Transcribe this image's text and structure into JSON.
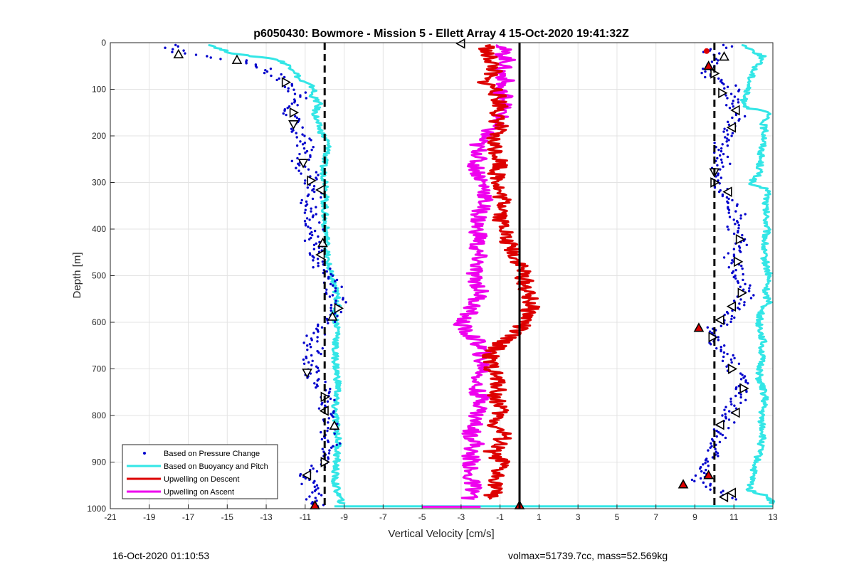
{
  "chart_data": {
    "type": "scatter",
    "title": "p6050430: Bowmore - Mission 5 - Ellett Array 4 15-Oct-2020 19:41:32Z",
    "xlabel": "Vertical Velocity [cm/s]",
    "ylabel": "Depth [m]",
    "xlim": [
      -21,
      13
    ],
    "ylim": [
      0,
      1000
    ],
    "y_reversed": true,
    "grid": true,
    "x_ticks": [
      -21,
      -19,
      -17,
      -15,
      -13,
      -11,
      -9,
      -7,
      -5,
      -3,
      -1,
      1,
      3,
      5,
      7,
      9,
      11,
      13
    ],
    "y_ticks": [
      0,
      100,
      200,
      300,
      400,
      500,
      600,
      700,
      800,
      900,
      1000
    ],
    "legend_position": "bottom-left",
    "reference_lines": [
      {
        "x": -10.0,
        "style": "dashed",
        "color": "#000000"
      },
      {
        "x": 0.0,
        "style": "solid",
        "color": "#000000"
      },
      {
        "x": 10.0,
        "style": "dashed",
        "color": "#000000"
      }
    ],
    "series": [
      {
        "name": "Based on Pressure Change",
        "color": "#0000cc",
        "marker": "dot",
        "groups": [
          {
            "depth": [
              5,
              20,
              30,
              40,
              55,
              70,
              85,
              100,
              120,
              140,
              160,
              180,
              200,
              220,
              240,
              260,
              280,
              300,
              320,
              340,
              360,
              380,
              400,
              420,
              440,
              460,
              480,
              500,
              520,
              540,
              560,
              580,
              600,
              620,
              640,
              660,
              680,
              700,
              720,
              740,
              760,
              780,
              800,
              820,
              840,
              860,
              880,
              900,
              920,
              940,
              960,
              980,
              995
            ],
            "vv": [
              -18,
              -17.5,
              -16,
              -14,
              -13,
              -12.5,
              -12,
              -11.5,
              -11.3,
              -11.8,
              -11.7,
              -11.6,
              -11.2,
              -11,
              -10.9,
              -11.5,
              -10.8,
              -10.6,
              -10.3,
              -10.8,
              -10.9,
              -10.6,
              -10.5,
              -10.7,
              -10.4,
              -10.8,
              -10.2,
              -9.8,
              -9.5,
              -9.6,
              -9.3,
              -9.5,
              -9.8,
              -10.3,
              -10.7,
              -10.5,
              -10.8,
              -10.7,
              -10.5,
              -10.1,
              -9.8,
              -10.0,
              -9.6,
              -9.7,
              -9.8,
              -9.6,
              -9.7,
              -9.9,
              -10.8,
              -10.9,
              -10.7,
              -10.5,
              -10.4
            ]
          },
          {
            "depth": [
              5,
              20,
              30,
              40,
              55,
              70,
              85,
              100,
              120,
              140,
              160,
              180,
              200,
              220,
              240,
              260,
              280,
              300,
              320,
              340,
              360,
              380,
              400,
              420,
              440,
              460,
              480,
              500,
              520,
              540,
              560,
              580,
              600,
              620,
              640,
              660,
              680,
              700,
              720,
              740,
              760,
              780,
              800,
              820,
              840,
              860,
              880,
              900,
              920,
              940,
              960,
              980
            ],
            "vv": [
              10.8,
              9.8,
              10.5,
              10.2,
              9.6,
              9.8,
              10.4,
              11.0,
              10.8,
              11.1,
              11.3,
              10.9,
              10.6,
              10.3,
              10.2,
              10.5,
              10.1,
              10.0,
              10.4,
              10.8,
              11.1,
              11.3,
              11.0,
              11.2,
              11.4,
              10.9,
              11.1,
              11.2,
              11.4,
              11.6,
              11.3,
              10.9,
              10.5,
              9.6,
              10.0,
              10.5,
              10.8,
              11.0,
              11.4,
              11.5,
              11.3,
              11.0,
              10.8,
              10.5,
              10.3,
              10.0,
              9.9,
              9.8,
              9.5,
              9.0,
              10.3,
              10.8
            ]
          }
        ]
      },
      {
        "name": "Based on Buoyancy and Pitch",
        "color": "#33e6e6",
        "marker": "line",
        "groups": [
          {
            "depth": [
              5,
              15,
              25,
              35,
              45,
              60,
              70,
              80,
              90,
              100,
              110,
              130,
              150,
              170,
              190,
              210,
              230,
              250,
              270,
              290,
              310,
              340,
              380,
              420,
              460,
              480,
              500,
              520,
              540,
              560,
              580,
              620,
              660,
              700,
              740,
              780,
              820,
              860,
              900,
              940,
              970,
              990
            ],
            "vv": [
              -15.8,
              -15.3,
              -14.5,
              -12.5,
              -12.0,
              -11.5,
              -11.4,
              -11.3,
              -10.8,
              -10.5,
              -10.7,
              -10.3,
              -10.5,
              -10.4,
              -10.2,
              -9.9,
              -9.8,
              -10.0,
              -10.1,
              -10.0,
              -9.9,
              -10.0,
              -10.0,
              -9.9,
              -9.9,
              -9.8,
              -9.7,
              -9.5,
              -9.4,
              -9.3,
              -9.5,
              -9.3,
              -9.5,
              -9.4,
              -9.3,
              -9.5,
              -9.4,
              -9.3,
              -9.4,
              -9.5,
              -9.3,
              -9.1
            ]
          },
          {
            "depth": [
              5,
              30,
              60,
              90,
              120,
              140,
              150,
              170,
              200,
              240,
              280,
              305,
              315,
              350,
              400,
              450,
              500,
              540,
              560,
              570,
              600,
              640,
              680,
              720,
              760,
              800,
              840,
              880,
              920,
              960,
              975,
              990
            ],
            "vv": [
              11.5,
              12.5,
              12.0,
              11.8,
              11.5,
              11.7,
              12.8,
              12.5,
              12.6,
              12.4,
              12.3,
              11.8,
              12.8,
              12.6,
              12.7,
              12.5,
              12.8,
              12.6,
              12.9,
              12.4,
              12.3,
              12.5,
              12.4,
              12.3,
              12.6,
              12.4,
              12.5,
              12.3,
              12.0,
              11.8,
              12.8,
              13.0
            ]
          }
        ]
      },
      {
        "name": "Upwelling on Descent",
        "color": "#dd0000",
        "marker": "line",
        "groups": [
          {
            "depth": [
              5,
              20,
              40,
              60,
              80,
              100,
              120,
              140,
              160,
              180,
              200,
              220,
              240,
              260,
              280,
              300,
              320,
              340,
              360,
              380,
              400,
              420,
              440,
              460,
              480,
              500,
              520,
              540,
              560,
              580,
              600,
              620,
              640,
              660,
              680,
              700,
              720,
              740,
              760,
              780,
              800,
              820,
              840,
              860,
              880,
              900,
              920,
              940,
              960,
              980
            ],
            "vv": [
              -1.5,
              -1.8,
              -1.4,
              -1.3,
              -1.9,
              -1.2,
              -1.1,
              -0.9,
              -1.2,
              -1.0,
              -1.4,
              -1.3,
              -1.1,
              -0.9,
              -1.2,
              -1.0,
              -1.1,
              -0.8,
              -0.7,
              -1.0,
              -0.6,
              -0.8,
              -0.4,
              -0.2,
              0.1,
              0.2,
              0.3,
              0.4,
              0.6,
              0.5,
              0.3,
              -0.2,
              -0.8,
              -1.3,
              -1.6,
              -1.4,
              -1.2,
              -1.0,
              -1.3,
              -0.9,
              -1.1,
              -1.3,
              -0.8,
              -1.0,
              -1.5,
              -0.9,
              -1.2,
              -1.1,
              -1.3,
              -1.4
            ]
          }
        ]
      },
      {
        "name": "Upwelling on Ascent",
        "color": "#ee00ee",
        "marker": "line",
        "groups": [
          {
            "depth": [
              5,
              20,
              40,
              60,
              80,
              100,
              120,
              140,
              160,
              180,
              200,
              220,
              240,
              260,
              280,
              300,
              320,
              340,
              360,
              380,
              400,
              420,
              440,
              460,
              480,
              500,
              520,
              540,
              560,
              580,
              600,
              620,
              640,
              660,
              680,
              700,
              720,
              740,
              760,
              780,
              800,
              820,
              840,
              860,
              880,
              900,
              920,
              940,
              960,
              980
            ],
            "vv": [
              -0.8,
              -0.9,
              -0.6,
              -1.0,
              -0.7,
              -1.1,
              -0.6,
              -0.9,
              -1.0,
              -1.4,
              -1.8,
              -2.2,
              -2.0,
              -2.3,
              -2.1,
              -1.9,
              -1.7,
              -1.8,
              -2.0,
              -2.1,
              -2.2,
              -2.0,
              -2.3,
              -2.1,
              -2.2,
              -2.4,
              -2.1,
              -2.0,
              -2.3,
              -2.6,
              -3.0,
              -2.8,
              -2.2,
              -1.9,
              -2.0,
              -1.8,
              -2.1,
              -2.3,
              -2.0,
              -1.9,
              -2.2,
              -2.3,
              -2.5,
              -2.2,
              -2.6,
              -2.4,
              -2.7,
              -2.5,
              -2.3,
              -2.6
            ]
          }
        ]
      }
    ],
    "markers": [
      {
        "vv": -17.5,
        "depth": 25,
        "shape": "triangle-up",
        "fill": "none"
      },
      {
        "vv": -14.5,
        "depth": 37,
        "shape": "triangle-up",
        "fill": "none"
      },
      {
        "vv": -12.0,
        "depth": 85,
        "shape": "triangle-right",
        "fill": "none"
      },
      {
        "vv": -11.6,
        "depth": 150,
        "shape": "triangle-right",
        "fill": "none"
      },
      {
        "vv": -11.6,
        "depth": 175,
        "shape": "triangle-down",
        "fill": "none"
      },
      {
        "vv": -11.1,
        "depth": 258,
        "shape": "triangle-down",
        "fill": "none"
      },
      {
        "vv": -10.7,
        "depth": 296,
        "shape": "triangle-right",
        "fill": "none"
      },
      {
        "vv": -10.2,
        "depth": 316,
        "shape": "triangle-left",
        "fill": "none"
      },
      {
        "vv": -10.1,
        "depth": 430,
        "shape": "triangle-up",
        "fill": "none"
      },
      {
        "vv": -10.2,
        "depth": 455,
        "shape": "triangle-left",
        "fill": "none"
      },
      {
        "vv": -9.3,
        "depth": 570,
        "shape": "triangle-right",
        "fill": "none"
      },
      {
        "vv": -9.6,
        "depth": 588,
        "shape": "triangle-up",
        "fill": "none"
      },
      {
        "vv": -10.9,
        "depth": 708,
        "shape": "triangle-down",
        "fill": "none"
      },
      {
        "vv": -10.0,
        "depth": 760,
        "shape": "triangle-right",
        "fill": "none"
      },
      {
        "vv": -10.0,
        "depth": 790,
        "shape": "triangle-left",
        "fill": "none"
      },
      {
        "vv": -9.5,
        "depth": 822,
        "shape": "triangle-up",
        "fill": "none"
      },
      {
        "vv": -10.0,
        "depth": 900,
        "shape": "triangle-right",
        "fill": "none"
      },
      {
        "vv": -10.9,
        "depth": 928,
        "shape": "triangle-left",
        "fill": "none"
      },
      {
        "vv": -10.5,
        "depth": 993,
        "shape": "triangle-up",
        "fill": "#dd0000"
      },
      {
        "vv": -3.0,
        "depth": 2,
        "shape": "triangle-left",
        "fill": "none"
      },
      {
        "vv": 0.0,
        "depth": 993,
        "shape": "triangle-up",
        "fill": "#dd0000"
      },
      {
        "vv": 9.6,
        "depth": 18,
        "shape": "circle",
        "fill": "#dd0000"
      },
      {
        "vv": 10.5,
        "depth": 30,
        "shape": "triangle-up",
        "fill": "none"
      },
      {
        "vv": 9.7,
        "depth": 50,
        "shape": "triangle-up",
        "fill": "#dd0000"
      },
      {
        "vv": 10.0,
        "depth": 66,
        "shape": "triangle-right",
        "fill": "none"
      },
      {
        "vv": 10.4,
        "depth": 108,
        "shape": "triangle-right",
        "fill": "none"
      },
      {
        "vv": 11.1,
        "depth": 145,
        "shape": "triangle-left",
        "fill": "none"
      },
      {
        "vv": 10.9,
        "depth": 182,
        "shape": "triangle-left",
        "fill": "none"
      },
      {
        "vv": 10.0,
        "depth": 278,
        "shape": "triangle-down",
        "fill": "none"
      },
      {
        "vv": 10.0,
        "depth": 300,
        "shape": "triangle-right",
        "fill": "none"
      },
      {
        "vv": 10.7,
        "depth": 320,
        "shape": "triangle-left",
        "fill": "none"
      },
      {
        "vv": 11.3,
        "depth": 422,
        "shape": "triangle-right",
        "fill": "none"
      },
      {
        "vv": 11.2,
        "depth": 470,
        "shape": "triangle-right",
        "fill": "none"
      },
      {
        "vv": 11.4,
        "depth": 537,
        "shape": "triangle-right",
        "fill": "none"
      },
      {
        "vv": 10.9,
        "depth": 566,
        "shape": "triangle-left",
        "fill": "none"
      },
      {
        "vv": 10.3,
        "depth": 595,
        "shape": "triangle-left",
        "fill": "none"
      },
      {
        "vv": 9.2,
        "depth": 612,
        "shape": "triangle-up",
        "fill": "#dd0000"
      },
      {
        "vv": 9.9,
        "depth": 632,
        "shape": "triangle-right",
        "fill": "none"
      },
      {
        "vv": 10.9,
        "depth": 700,
        "shape": "triangle-right",
        "fill": "none"
      },
      {
        "vv": 11.5,
        "depth": 742,
        "shape": "triangle-right",
        "fill": "none"
      },
      {
        "vv": 11.1,
        "depth": 794,
        "shape": "triangle-left",
        "fill": "none"
      },
      {
        "vv": 10.3,
        "depth": 820,
        "shape": "triangle-left",
        "fill": "none"
      },
      {
        "vv": 9.7,
        "depth": 928,
        "shape": "triangle-up",
        "fill": "#dd0000"
      },
      {
        "vv": 8.4,
        "depth": 948,
        "shape": "triangle-up",
        "fill": "#dd0000"
      },
      {
        "vv": 10.9,
        "depth": 966,
        "shape": "triangle-left",
        "fill": "none"
      },
      {
        "vv": 10.5,
        "depth": 975,
        "shape": "triangle-left",
        "fill": "none"
      }
    ]
  },
  "footer": {
    "timestamp": "16-Oct-2020 01:10:53",
    "summary": "volmax=51739.7cc, mass=52.569kg"
  }
}
